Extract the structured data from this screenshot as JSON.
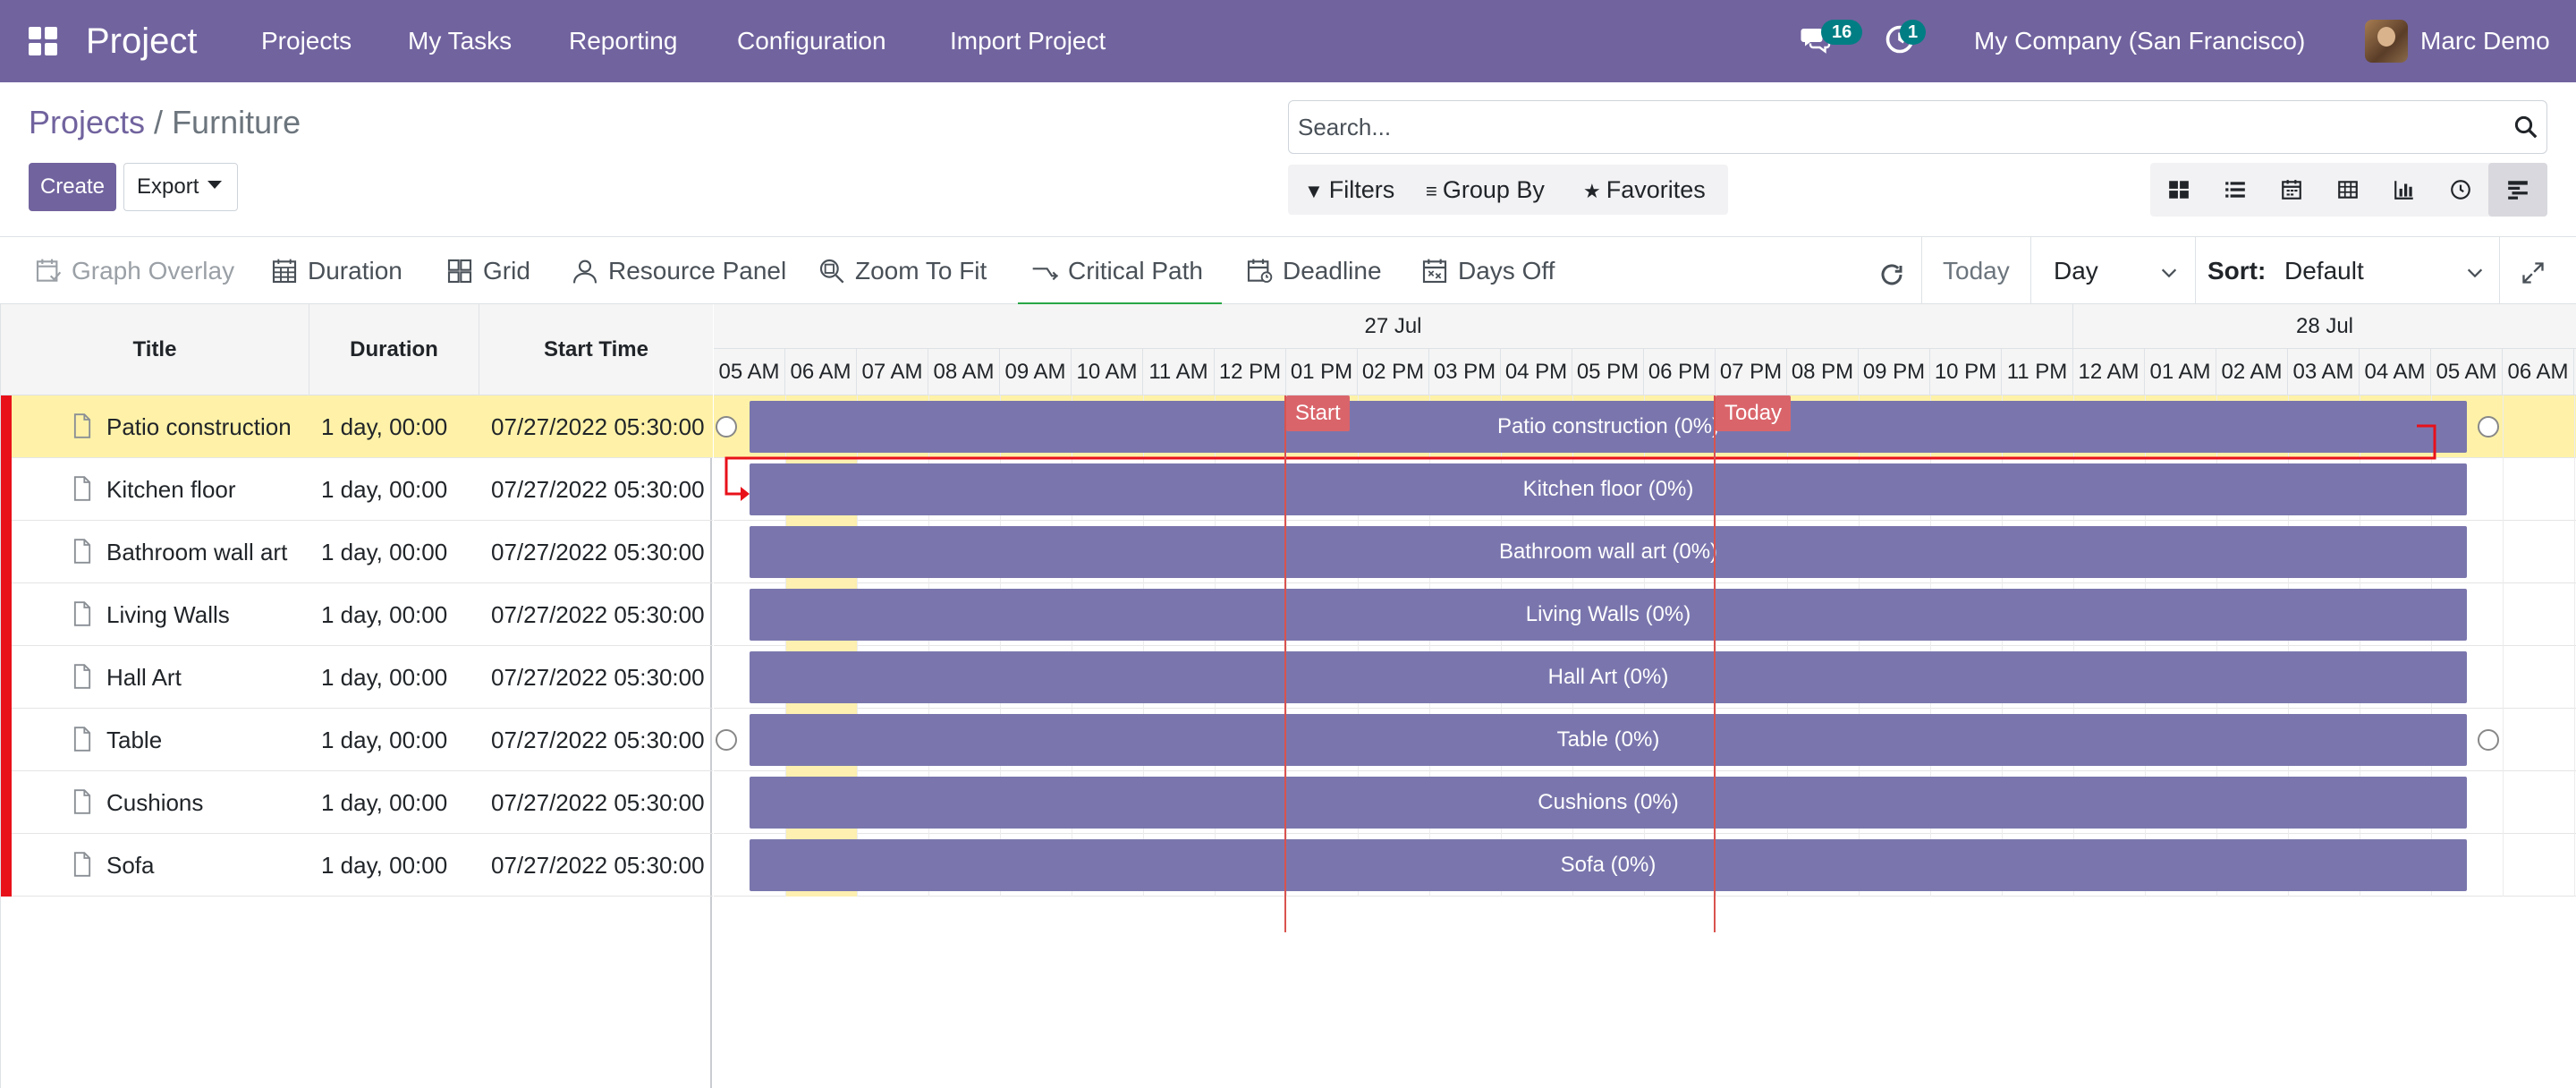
{
  "app": {
    "brand": "Project",
    "menu": [
      "Projects",
      "My Tasks",
      "Reporting",
      "Configuration",
      "Import Project"
    ],
    "messages_count": "16",
    "activities_count": "1",
    "company": "My Company (San Francisco)",
    "user": "Marc Demo"
  },
  "breadcrumb": {
    "parent": "Projects",
    "separator": " / ",
    "current": "Furniture"
  },
  "actions": {
    "create": "Create",
    "export": "Export"
  },
  "search": {
    "placeholder": "Search...",
    "value": ""
  },
  "filters": {
    "filters": "Filters",
    "group_by": "Group By",
    "favorites": "Favorites"
  },
  "views": [
    "kanban",
    "list",
    "calendar",
    "pivot",
    "graph",
    "activity",
    "gantt"
  ],
  "active_view": "gantt",
  "gantt_toolbar": {
    "graph_overlay": "Graph Overlay",
    "duration": "Duration",
    "grid": "Grid",
    "resource_panel": "Resource Panel",
    "zoom_to_fit": "Zoom To Fit",
    "critical_path": "Critical Path",
    "deadline": "Deadline",
    "days_off": "Days Off",
    "today": "Today",
    "scale": "Day",
    "sort_label": "Sort:",
    "sort_value": "Default"
  },
  "grid": {
    "columns": [
      "Title",
      "Duration",
      "Start Time"
    ],
    "rows": [
      {
        "title": "Patio construction",
        "duration": "1 day, 00:00",
        "start": "07/27/2022 05:30:00"
      },
      {
        "title": "Kitchen floor",
        "duration": "1 day, 00:00",
        "start": "07/27/2022 05:30:00"
      },
      {
        "title": "Bathroom wall art",
        "duration": "1 day, 00:00",
        "start": "07/27/2022 05:30:00"
      },
      {
        "title": "Living Walls",
        "duration": "1 day, 00:00",
        "start": "07/27/2022 05:30:00"
      },
      {
        "title": "Hall Art",
        "duration": "1 day, 00:00",
        "start": "07/27/2022 05:30:00"
      },
      {
        "title": "Table",
        "duration": "1 day, 00:00",
        "start": "07/27/2022 05:30:00"
      },
      {
        "title": "Cushions",
        "duration": "1 day, 00:00",
        "start": "07/27/2022 05:30:00"
      },
      {
        "title": "Sofa",
        "duration": "1 day, 00:00",
        "start": "07/27/2022 05:30:00"
      }
    ]
  },
  "timeline": {
    "dates": [
      "27 Jul",
      "28 Jul"
    ],
    "hours": [
      "05 AM",
      "06 AM",
      "07 AM",
      "08 AM",
      "09 AM",
      "10 AM",
      "11 AM",
      "12 PM",
      "01 PM",
      "02 PM",
      "03 PM",
      "04 PM",
      "05 PM",
      "06 PM",
      "07 PM",
      "08 PM",
      "09 PM",
      "10 PM",
      "11 PM",
      "12 AM",
      "01 AM",
      "02 AM",
      "03 AM",
      "04 AM",
      "05 AM",
      "06 AM"
    ],
    "bars": [
      "Patio construction (0%)",
      "Kitchen floor (0%)",
      "Bathroom wall art (0%)",
      "Living Walls (0%)",
      "Hall Art (0%)",
      "Table (0%)",
      "Cushions (0%)",
      "Sofa (0%)"
    ],
    "start_marker": "Start",
    "today_marker": "Today"
  },
  "colors": {
    "brand": "#71639e",
    "bar": "#7a76ad",
    "selected_row": "#fff2a8",
    "marker": "#d9534f",
    "critical": "#e8111a"
  }
}
